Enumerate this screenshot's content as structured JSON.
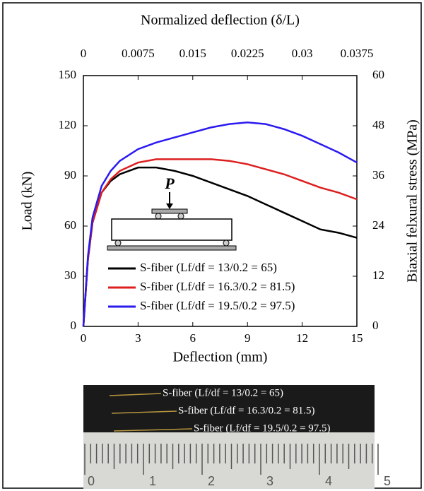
{
  "chart_data": {
    "type": "line",
    "x_label": "Deflection (mm)",
    "y_label": "Load (kN)",
    "y2_label": "Biaxial felxural stress (MPa)",
    "x2_label": "Normalized deflection (δ/L)",
    "annotations": [
      "P"
    ],
    "x": [
      0,
      0.25,
      0.5,
      1,
      1.5,
      2,
      3,
      4,
      5,
      6,
      7,
      8,
      9,
      10,
      11,
      12,
      13,
      14,
      15
    ],
    "series": [
      {
        "name": "S-fiber (Lf/df = 13/0.2 = 65)",
        "color": "#000000",
        "values": [
          0,
          40,
          62,
          80,
          87,
          91,
          95,
          95,
          93,
          90,
          86,
          82,
          78,
          73,
          68,
          63,
          58,
          56,
          53
        ]
      },
      {
        "name": "S-fiber (Lf/df = 16.3/0.2 = 81.5)",
        "color": "#dd1f1f",
        "values": [
          0,
          40,
          62,
          80,
          88,
          93,
          98,
          100,
          100,
          100,
          100,
          99,
          97,
          94,
          91,
          87,
          83,
          80,
          76
        ]
      },
      {
        "name": "S-fiber (Lf/df = 19.5/0.2 = 97.5)",
        "color": "#2a1aef",
        "values": [
          0,
          42,
          65,
          84,
          93,
          99,
          106,
          110,
          113,
          116,
          119,
          121,
          122,
          121,
          118,
          114,
          109,
          104,
          98
        ]
      }
    ],
    "xlim": [
      0,
      15
    ],
    "xticks": [
      0,
      3,
      6,
      9,
      12,
      15
    ],
    "ylim": [
      0,
      150
    ],
    "yticks": [
      0,
      30,
      60,
      90,
      120,
      150
    ],
    "x2lim": [
      0,
      0.0375
    ],
    "x2ticks": [
      0,
      0.0075,
      0.015,
      0.0225,
      0.03,
      0.0375
    ],
    "y2lim": [
      0,
      60
    ],
    "y2ticks": [
      0,
      12,
      24,
      36,
      48,
      60
    ],
    "legend": "lower-left",
    "grid": false
  },
  "photo": {
    "fiber_labels": [
      "S-fiber (Lf/df = 13/0.2 = 65)",
      "S-fiber (Lf/df = 16.3/0.2 = 81.5)",
      "S-fiber (Lf/df = 19.5/0.2 = 97.5)"
    ],
    "ruler_labels": [
      "0",
      "1",
      "2",
      "3",
      "4",
      "5"
    ]
  }
}
